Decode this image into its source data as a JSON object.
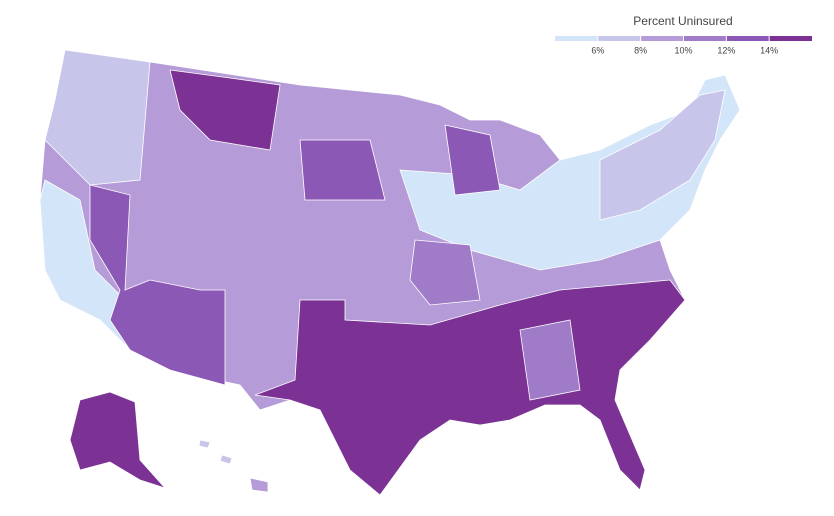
{
  "legend": {
    "title": "Percent Uninsured",
    "ticks": [
      {
        "value": 6,
        "label": "6%"
      },
      {
        "value": 8,
        "label": "8%"
      },
      {
        "value": 10,
        "label": "10%"
      },
      {
        "value": 12,
        "label": "12%"
      },
      {
        "value": 14,
        "label": "14%"
      }
    ],
    "colors": [
      "#d3e5f8",
      "#c8c5ea",
      "#b59bd7",
      "#a07bc7",
      "#8c58b6",
      "#7b3294"
    ]
  }
}
